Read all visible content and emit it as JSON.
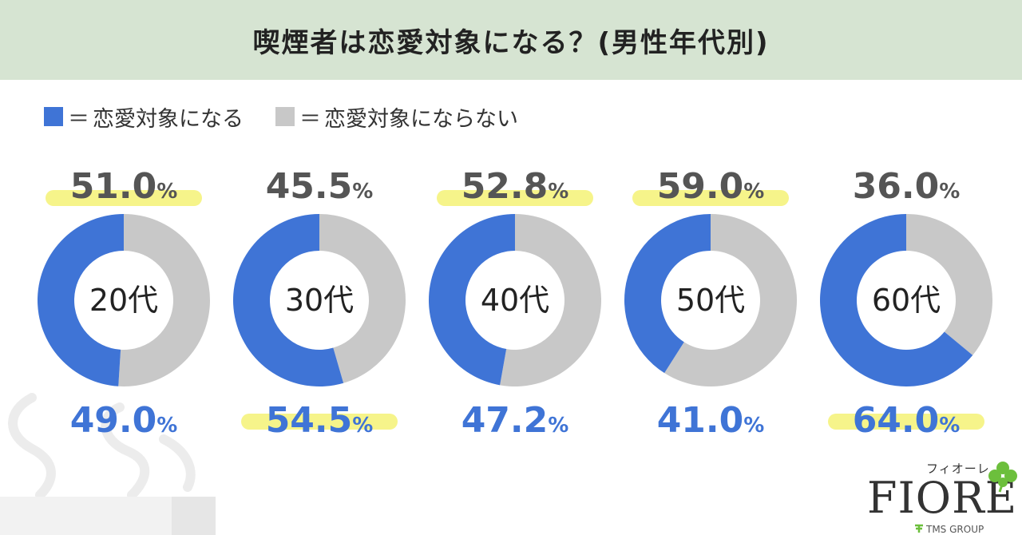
{
  "title": "喫煙者は恋愛対象になる？(男性年代別)",
  "legend": [
    {
      "eq": "＝",
      "label": "恋愛対象になる",
      "color": "#3f74d6"
    },
    {
      "eq": "＝",
      "label": "恋愛対象にならない",
      "color": "#c8c8c8"
    }
  ],
  "colors": {
    "yes": "#3f74d6",
    "no": "#c8c8c8",
    "highlight": "#f6f48a",
    "grey_text": "#555555",
    "header_bg": "#d6e4d2"
  },
  "chart_data": {
    "type": "pie",
    "categories": [
      "20代",
      "30代",
      "40代",
      "50代",
      "60代"
    ],
    "series": [
      {
        "name": "恋愛対象になる",
        "values": [
          49.0,
          54.5,
          47.2,
          41.0,
          64.0
        ],
        "labels": [
          "49.0",
          "54.5",
          "47.2",
          "41.0",
          "64.0"
        ]
      },
      {
        "name": "恋愛対象にならない",
        "values": [
          51.0,
          45.5,
          52.8,
          59.0,
          36.0
        ],
        "labels": [
          "51.0",
          "45.5",
          "52.8",
          "59.0",
          "36.0"
        ]
      }
    ],
    "unit": "%",
    "highlight_larger": true
  },
  "logo": {
    "kana": "フィオーレ",
    "name": "FIORE",
    "group": "TMS GROUP"
  }
}
